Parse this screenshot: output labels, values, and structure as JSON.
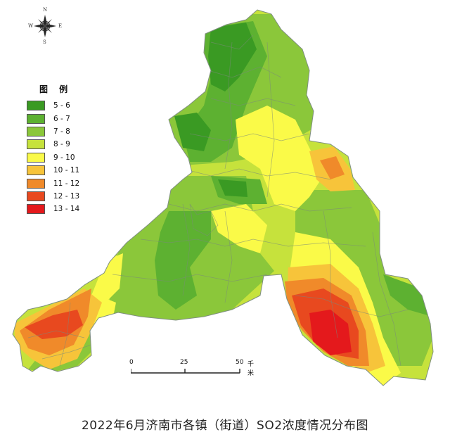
{
  "compass": {
    "north": "N",
    "west": "W",
    "east": "E",
    "south": "S"
  },
  "legend": {
    "title": "图 例",
    "items": [
      {
        "label": "5 - 6",
        "color": "#3a9a23"
      },
      {
        "label": "6 - 7",
        "color": "#5db131"
      },
      {
        "label": "7 - 8",
        "color": "#8bc73a"
      },
      {
        "label": "8 - 9",
        "color": "#c6e23c"
      },
      {
        "label": "9 - 10",
        "color": "#fafa48"
      },
      {
        "label": "10 - 11",
        "color": "#f7c43a"
      },
      {
        "label": "11 - 12",
        "color": "#f08a2a"
      },
      {
        "label": "12 - 13",
        "color": "#e8491f"
      },
      {
        "label": "13 - 14",
        "color": "#e4191c"
      }
    ]
  },
  "scale": {
    "ticks": [
      "0",
      "25",
      "50"
    ],
    "unit": "千米"
  },
  "caption": "2022年6月济南市各镇（街道）SO2浓度情况分布图"
}
